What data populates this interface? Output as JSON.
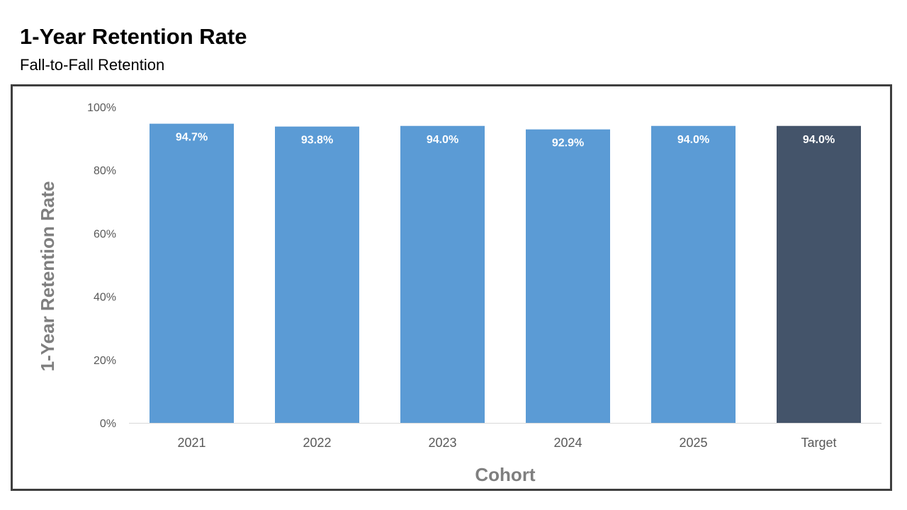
{
  "header": {
    "title": "1-Year Retention Rate",
    "subtitle": "Fall-to-Fall Retention"
  },
  "colors": {
    "bar": "#5b9bd5",
    "target_bar": "#44546a",
    "axis_line": "#d9d9d9",
    "frame": "#3f3f3f"
  },
  "chart_data": {
    "type": "bar",
    "title": "1-Year Retention Rate",
    "subtitle": "Fall-to-Fall Retention",
    "xlabel": "Cohort",
    "ylabel": "1-Year Retention Rate",
    "categories": [
      "2021",
      "2022",
      "2023",
      "2024",
      "2025",
      "Target"
    ],
    "values": [
      94.7,
      93.8,
      94.0,
      92.9,
      94.0,
      94.0
    ],
    "data_labels": [
      "94.7%",
      "93.8%",
      "94.0%",
      "92.9%",
      "94.0%",
      "94.0%"
    ],
    "highlight_category": "Target",
    "ylim": [
      0,
      100
    ],
    "yticks": [
      0,
      20,
      40,
      60,
      80,
      100
    ],
    "ytick_labels": [
      "0%",
      "20%",
      "40%",
      "60%",
      "80%",
      "100%"
    ],
    "grid": false,
    "legend": "none"
  }
}
